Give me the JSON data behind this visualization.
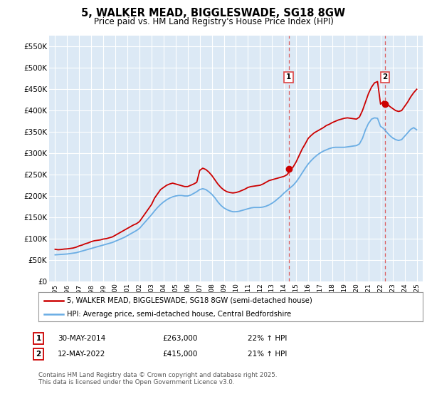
{
  "title": "5, WALKER MEAD, BIGGLESWADE, SG18 8GW",
  "subtitle": "Price paid vs. HM Land Registry's House Price Index (HPI)",
  "legend_label_red": "5, WALKER MEAD, BIGGLESWADE, SG18 8GW (semi-detached house)",
  "legend_label_blue": "HPI: Average price, semi-detached house, Central Bedfordshire",
  "footer": "Contains HM Land Registry data © Crown copyright and database right 2025.\nThis data is licensed under the Open Government Licence v3.0.",
  "purchase1": {
    "label": "1",
    "date": "30-MAY-2014",
    "price": 263000,
    "pct": "22%",
    "direction": "↑",
    "year": 2014.37
  },
  "purchase2": {
    "label": "2",
    "date": "12-MAY-2022",
    "price": 415000,
    "pct": "21%",
    "direction": "↑",
    "year": 2022.36
  },
  "ylim": [
    0,
    575000
  ],
  "yticks": [
    0,
    50000,
    100000,
    150000,
    200000,
    250000,
    300000,
    350000,
    400000,
    450000,
    500000,
    550000
  ],
  "ytick_labels": [
    "£0",
    "£50K",
    "£100K",
    "£150K",
    "£200K",
    "£250K",
    "£300K",
    "£350K",
    "£400K",
    "£450K",
    "£500K",
    "£550K"
  ],
  "xticks": [
    1995,
    1996,
    1997,
    1998,
    1999,
    2000,
    2001,
    2002,
    2003,
    2004,
    2005,
    2006,
    2007,
    2008,
    2009,
    2010,
    2011,
    2012,
    2013,
    2014,
    2015,
    2016,
    2017,
    2018,
    2019,
    2020,
    2021,
    2022,
    2023,
    2024,
    2025
  ],
  "red_color": "#cc0000",
  "blue_color": "#6aade4",
  "bg_color": "#dce9f5",
  "grid_color": "#ffffff",
  "vline_color": "#dd4444",
  "marker_color": "#cc0000",
  "red_x": [
    1995.0,
    1995.25,
    1995.5,
    1995.75,
    1996.0,
    1996.25,
    1996.5,
    1996.75,
    1997.0,
    1997.25,
    1997.5,
    1997.75,
    1998.0,
    1998.25,
    1998.5,
    1998.75,
    1999.0,
    1999.25,
    1999.5,
    1999.75,
    2000.0,
    2000.25,
    2000.5,
    2000.75,
    2001.0,
    2001.25,
    2001.5,
    2001.75,
    2002.0,
    2002.25,
    2002.5,
    2002.75,
    2003.0,
    2003.25,
    2003.5,
    2003.75,
    2004.0,
    2004.25,
    2004.5,
    2004.75,
    2005.0,
    2005.25,
    2005.5,
    2005.75,
    2006.0,
    2006.25,
    2006.5,
    2006.75,
    2007.0,
    2007.25,
    2007.5,
    2007.75,
    2008.0,
    2008.25,
    2008.5,
    2008.75,
    2009.0,
    2009.25,
    2009.5,
    2009.75,
    2010.0,
    2010.25,
    2010.5,
    2010.75,
    2011.0,
    2011.25,
    2011.5,
    2011.75,
    2012.0,
    2012.25,
    2012.5,
    2012.75,
    2013.0,
    2013.25,
    2013.5,
    2013.75,
    2014.0,
    2014.25,
    2014.5,
    2014.75,
    2015.0,
    2015.25,
    2015.5,
    2015.75,
    2016.0,
    2016.25,
    2016.5,
    2016.75,
    2017.0,
    2017.25,
    2017.5,
    2017.75,
    2018.0,
    2018.25,
    2018.5,
    2018.75,
    2019.0,
    2019.25,
    2019.5,
    2019.75,
    2020.0,
    2020.25,
    2020.5,
    2020.75,
    2021.0,
    2021.25,
    2021.5,
    2021.75,
    2022.0,
    2022.25,
    2022.5,
    2022.75,
    2023.0,
    2023.25,
    2023.5,
    2023.75,
    2024.0,
    2024.25,
    2024.5,
    2024.75,
    2025.0
  ],
  "red_y": [
    75000,
    74000,
    74500,
    75500,
    76000,
    77000,
    78000,
    80000,
    83000,
    85000,
    88000,
    90000,
    93000,
    95000,
    96000,
    97000,
    99000,
    100000,
    102000,
    104000,
    108000,
    112000,
    116000,
    120000,
    124000,
    128000,
    132000,
    135000,
    140000,
    150000,
    160000,
    170000,
    180000,
    195000,
    205000,
    215000,
    220000,
    225000,
    228000,
    230000,
    228000,
    226000,
    224000,
    222000,
    222000,
    225000,
    228000,
    232000,
    260000,
    265000,
    262000,
    256000,
    248000,
    238000,
    228000,
    220000,
    214000,
    210000,
    208000,
    207000,
    208000,
    210000,
    213000,
    216000,
    220000,
    222000,
    223000,
    224000,
    225000,
    228000,
    232000,
    236000,
    238000,
    240000,
    242000,
    244000,
    246000,
    250000,
    260000,
    268000,
    280000,
    295000,
    310000,
    322000,
    335000,
    342000,
    348000,
    352000,
    356000,
    360000,
    365000,
    368000,
    372000,
    375000,
    378000,
    380000,
    382000,
    383000,
    382000,
    381000,
    380000,
    385000,
    400000,
    420000,
    440000,
    455000,
    465000,
    468000,
    415000,
    422000,
    418000,
    410000,
    405000,
    400000,
    398000,
    400000,
    410000,
    420000,
    432000,
    442000,
    450000
  ],
  "blue_x": [
    1995.0,
    1995.25,
    1995.5,
    1995.75,
    1996.0,
    1996.25,
    1996.5,
    1996.75,
    1997.0,
    1997.25,
    1997.5,
    1997.75,
    1998.0,
    1998.25,
    1998.5,
    1998.75,
    1999.0,
    1999.25,
    1999.5,
    1999.75,
    2000.0,
    2000.25,
    2000.5,
    2000.75,
    2001.0,
    2001.25,
    2001.5,
    2001.75,
    2002.0,
    2002.25,
    2002.5,
    2002.75,
    2003.0,
    2003.25,
    2003.5,
    2003.75,
    2004.0,
    2004.25,
    2004.5,
    2004.75,
    2005.0,
    2005.25,
    2005.5,
    2005.75,
    2006.0,
    2006.25,
    2006.5,
    2006.75,
    2007.0,
    2007.25,
    2007.5,
    2007.75,
    2008.0,
    2008.25,
    2008.5,
    2008.75,
    2009.0,
    2009.25,
    2009.5,
    2009.75,
    2010.0,
    2010.25,
    2010.5,
    2010.75,
    2011.0,
    2011.25,
    2011.5,
    2011.75,
    2012.0,
    2012.25,
    2012.5,
    2012.75,
    2013.0,
    2013.25,
    2013.5,
    2013.75,
    2014.0,
    2014.25,
    2014.5,
    2014.75,
    2015.0,
    2015.25,
    2015.5,
    2015.75,
    2016.0,
    2016.25,
    2016.5,
    2016.75,
    2017.0,
    2017.25,
    2017.5,
    2017.75,
    2018.0,
    2018.25,
    2018.5,
    2018.75,
    2019.0,
    2019.25,
    2019.5,
    2019.75,
    2020.0,
    2020.25,
    2020.5,
    2020.75,
    2021.0,
    2021.25,
    2021.5,
    2021.75,
    2022.0,
    2022.25,
    2022.5,
    2022.75,
    2023.0,
    2023.25,
    2023.5,
    2023.75,
    2024.0,
    2024.25,
    2024.5,
    2024.75,
    2025.0
  ],
  "blue_y": [
    62000,
    62500,
    63000,
    63500,
    64000,
    65000,
    66000,
    67000,
    69000,
    71000,
    73000,
    75000,
    77000,
    79000,
    81000,
    83000,
    85000,
    87000,
    89000,
    91000,
    94000,
    97000,
    100000,
    103000,
    107000,
    111000,
    115000,
    119000,
    124000,
    132000,
    140000,
    148000,
    156000,
    165000,
    173000,
    180000,
    186000,
    191000,
    195000,
    198000,
    200000,
    201000,
    201000,
    200000,
    200000,
    202000,
    206000,
    210000,
    215000,
    217000,
    215000,
    210000,
    204000,
    196000,
    186000,
    178000,
    172000,
    168000,
    165000,
    163000,
    163000,
    164000,
    166000,
    168000,
    170000,
    172000,
    173000,
    173000,
    173000,
    174000,
    176000,
    179000,
    183000,
    188000,
    194000,
    200000,
    207000,
    213000,
    219000,
    225000,
    233000,
    243000,
    254000,
    265000,
    275000,
    283000,
    290000,
    296000,
    301000,
    305000,
    308000,
    311000,
    313000,
    314000,
    314000,
    314000,
    314000,
    315000,
    316000,
    317000,
    318000,
    322000,
    335000,
    355000,
    370000,
    380000,
    383000,
    382000,
    363000,
    358000,
    350000,
    342000,
    336000,
    332000,
    330000,
    332000,
    340000,
    348000,
    356000,
    360000,
    355000
  ]
}
